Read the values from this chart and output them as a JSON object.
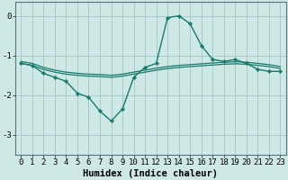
{
  "bg_color": "#cde8e5",
  "grid_color": "#a0c8c5",
  "line_color": "#1a7a6e",
  "marker_color": "#1a7a6e",
  "xlabel": "Humidex (Indice chaleur)",
  "xlabel_fontsize": 7.5,
  "tick_fontsize": 6.5,
  "xlim": [
    -0.5,
    23.5
  ],
  "ylim": [
    -3.5,
    0.35
  ],
  "yticks": [
    0,
    -1,
    -2,
    -3
  ],
  "xticks": [
    0,
    1,
    2,
    3,
    4,
    5,
    6,
    7,
    8,
    9,
    10,
    11,
    12,
    13,
    14,
    15,
    16,
    17,
    18,
    19,
    20,
    21,
    22,
    23
  ],
  "figsize": [
    3.2,
    2.0
  ],
  "dpi": 100,
  "series": [
    {
      "x": [
        0,
        1,
        2,
        3,
        4,
        5,
        6,
        7,
        8,
        9,
        10,
        11,
        12,
        13,
        14,
        15,
        16,
        17,
        18,
        19,
        20,
        21,
        22,
        23
      ],
      "y": [
        -1.2,
        -1.25,
        -1.45,
        -1.55,
        -1.65,
        -1.95,
        -2.05,
        -2.4,
        -2.65,
        -2.35,
        -1.55,
        -1.3,
        -1.2,
        -0.05,
        0.0,
        -0.2,
        -0.75,
        -1.1,
        -1.15,
        -1.1,
        -1.2,
        -1.35,
        -1.4,
        -1.4
      ],
      "marker": "D",
      "markersize": 2.2,
      "linewidth": 1.0
    },
    {
      "x": [
        0,
        1,
        2,
        3,
        4,
        5,
        6,
        7,
        8,
        9,
        10,
        11,
        12,
        13,
        14,
        15,
        16,
        17,
        18,
        19,
        20,
        21,
        22,
        23
      ],
      "y": [
        -1.2,
        -1.25,
        -1.35,
        -1.42,
        -1.47,
        -1.5,
        -1.52,
        -1.53,
        -1.55,
        -1.52,
        -1.47,
        -1.42,
        -1.37,
        -1.33,
        -1.3,
        -1.28,
        -1.26,
        -1.24,
        -1.22,
        -1.21,
        -1.22,
        -1.25,
        -1.28,
        -1.33
      ],
      "marker": null,
      "markersize": 0,
      "linewidth": 0.9
    },
    {
      "x": [
        0,
        1,
        2,
        3,
        4,
        5,
        6,
        7,
        8,
        9,
        10,
        11,
        12,
        13,
        14,
        15,
        16,
        17,
        18,
        19,
        20,
        21,
        22,
        23
      ],
      "y": [
        -1.15,
        -1.2,
        -1.3,
        -1.37,
        -1.42,
        -1.45,
        -1.47,
        -1.48,
        -1.5,
        -1.47,
        -1.42,
        -1.37,
        -1.32,
        -1.28,
        -1.25,
        -1.23,
        -1.21,
        -1.19,
        -1.17,
        -1.16,
        -1.17,
        -1.2,
        -1.23,
        -1.28
      ],
      "marker": null,
      "markersize": 0,
      "linewidth": 0.9
    }
  ]
}
